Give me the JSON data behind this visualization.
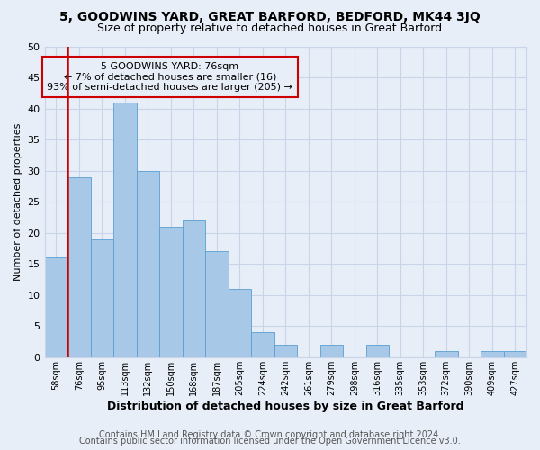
{
  "title1": "5, GOODWINS YARD, GREAT BARFORD, BEDFORD, MK44 3JQ",
  "title2": "Size of property relative to detached houses in Great Barford",
  "xlabel": "Distribution of detached houses by size in Great Barford",
  "ylabel": "Number of detached properties",
  "bin_labels": [
    "58sqm",
    "76sqm",
    "95sqm",
    "113sqm",
    "132sqm",
    "150sqm",
    "168sqm",
    "187sqm",
    "205sqm",
    "224sqm",
    "242sqm",
    "261sqm",
    "279sqm",
    "298sqm",
    "316sqm",
    "335sqm",
    "353sqm",
    "372sqm",
    "390sqm",
    "409sqm",
    "427sqm"
  ],
  "bar_values": [
    16,
    29,
    19,
    41,
    30,
    21,
    22,
    17,
    11,
    4,
    2,
    0,
    2,
    0,
    2,
    0,
    0,
    1,
    0,
    1,
    1
  ],
  "highlight_index": 1,
  "highlight_color": "#cc0000",
  "bar_color": "#a8c8e8",
  "bar_edge_color": "#5a9fd4",
  "annotation_line1": "5 GOODWINS YARD: 76sqm",
  "annotation_line2": "← 7% of detached houses are smaller (16)",
  "annotation_line3": "93% of semi-detached houses are larger (205) →",
  "annotation_box_edge": "#cc0000",
  "ylim": [
    0,
    50
  ],
  "yticks": [
    0,
    5,
    10,
    15,
    20,
    25,
    30,
    35,
    40,
    45,
    50
  ],
  "grid_color": "#c8d4e8",
  "bg_color": "#e8eef8",
  "footer1": "Contains HM Land Registry data © Crown copyright and database right 2024.",
  "footer2": "Contains public sector information licensed under the Open Government Licence v3.0.",
  "title1_fontsize": 10,
  "title2_fontsize": 9,
  "annotation_fontsize": 8,
  "xlabel_fontsize": 9,
  "ylabel_fontsize": 8,
  "footer_fontsize": 7
}
